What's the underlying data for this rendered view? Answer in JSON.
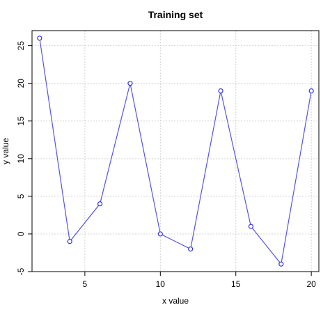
{
  "chart_data": {
    "type": "line",
    "title": "Training set",
    "xlabel": "x value",
    "ylabel": "y value",
    "xlim": [
      1.5,
      20.5
    ],
    "ylim": [
      -5,
      27
    ],
    "xticks": [
      5,
      10,
      15,
      20
    ],
    "yticks": [
      -5,
      0,
      5,
      10,
      15,
      20,
      25
    ],
    "grid": true,
    "markers": "open-circle",
    "series": [
      {
        "color": "#5555dd",
        "x": [
          2,
          4,
          6,
          8,
          10,
          12,
          14,
          16,
          18,
          20
        ],
        "y": [
          26,
          -1,
          4,
          20,
          0,
          -2,
          19,
          1,
          -4,
          19
        ]
      }
    ]
  }
}
